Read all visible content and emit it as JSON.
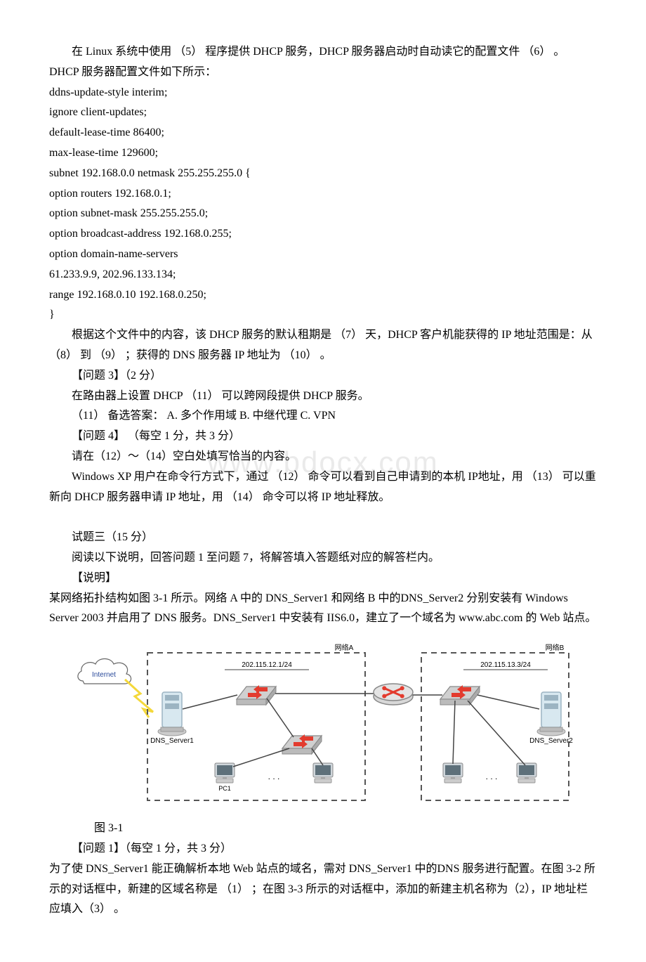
{
  "watermark": "www.bdocx.com",
  "p1": "在 Linux 系统中使用 （5） 程序提供 DHCP 服务，DHCP 服务器启动时自动读它的配置文件 （6） 。 DHCP 服务器配置文件如下所示：",
  "code": [
    "ddns-update-style interim;",
    "ignore client-updates;",
    "default-lease-time 86400;",
    "max-lease-time 129600;",
    "subnet 192.168.0.0 netmask 255.255.255.0 {",
    "option routers 192.168.0.1;",
    "option subnet-mask 255.255.255.0;",
    "option broadcast-address 192.168.0.255;",
    "option domain-name-servers",
    "61.233.9.9,    202.96.133.134;",
    "range 192.168.0.10 192.168.0.250;",
    "}"
  ],
  "p2": "根据这个文件中的内容，该 DHCP 服务的默认租期是 （7） 天，DHCP 客户机能获得的 IP 地址范围是：从 （8） 到 （9） ；获得的 DNS 服务器 IP 地址为 （10） 。",
  "q3h": "【问题 3】（2 分）",
  "q3a": "在路由器上设置 DHCP （11） 可以跨网段提供 DHCP 服务。",
  "q3b": "（11） 备选答案：   A. 多个作用域       B. 中继代理      C. VPN",
  "q4h": "【问题 4】 （每空 1 分，共 3 分）",
  "q4a": "请在（12）～（14）空白处填写恰当的内容。",
  "q4b": "Windows XP 用户在命令行方式下，通过 （12） 命令可以看到自己申请到的本机 IP地址，用 （13） 可以重新向 DHCP 服务器申请 IP 地址，用 （14） 命令可以将 IP 地址释放。",
  "t3h": "  试题三（15 分）",
  "t3a": "阅读以下说明，回答问题 1 至问题 7，将解答填入答题纸对应的解答栏内。",
  "t3b": "【说明】",
  "t3c": "    某网络拓扑结构如图 3-1 所示。网络 A 中的 DNS_Server1 和网络 B 中的DNS_Server2 分别安装有 Windows Server 2003 并启用了 DNS 服务。DNS_Server1 中安装有 IIS6.0，建立了一个域名为 www.abc.com 的 Web 站点。",
  "figcap": "图 3-1",
  "q1h": "【问题 1】（每空 1 分，共 3 分）",
  "q1a": "    为了使 DNS_Server1 能正确解析本地 Web 站点的域名，需对 DNS_Server1 中的DNS 服务进行配置。在图 3-2 所示的对话框中，新建的区域名称是 （1） ；在图 3-3 所示的对话框中，添加的新建主机名称为（2），IP 地址栏应填入（3） 。",
  "fig": {
    "labels": {
      "internet": "Internet",
      "netA": "网络A",
      "netB": "网络B",
      "ipA": "202.115.12.1/24",
      "ipB": "202.115.13.3/24",
      "srv1": "DNS_Server1",
      "srv2": "DNS_Server2",
      "pc1": "PC1"
    },
    "colors": {
      "cloud_fill": "#ffffff",
      "cloud_stroke": "#666666",
      "dash": "#555555",
      "server_body": "#d8e8f0",
      "server_dark": "#9cb4c2",
      "switch_body": "#d0d0d0",
      "router_body": "#d8d8d8",
      "arrow": "#e33b2e",
      "pc_body": "#cfd6db",
      "pc_screen": "#5e707a",
      "line": "#444444",
      "bolt": "#f4d83a",
      "text": "#000000",
      "blue_text": "#2a4a9a"
    },
    "font_label": 11,
    "font_small": 10
  }
}
